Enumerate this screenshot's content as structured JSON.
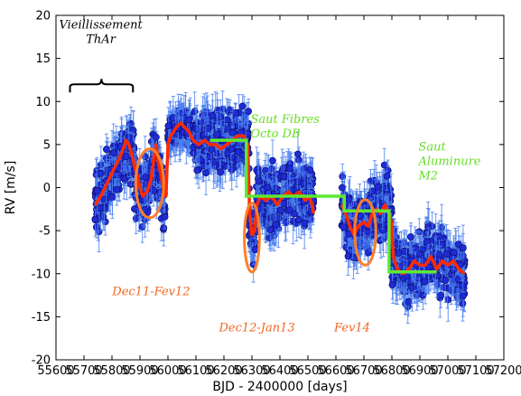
{
  "chart_data": {
    "type": "scatter",
    "title": "",
    "xlabel": "BJD - 2400000 [days]",
    "ylabel": "RV [m/s]",
    "xlim": [
      55600,
      57200
    ],
    "ylim": [
      -20,
      20
    ],
    "xticks": [
      55600,
      55700,
      55800,
      55900,
      56000,
      56100,
      56200,
      56300,
      56400,
      56500,
      56600,
      56700,
      56800,
      56900,
      57000,
      57100,
      57200
    ],
    "yticks": [
      -20,
      -15,
      -10,
      -5,
      0,
      5,
      10,
      15,
      20
    ],
    "grid": false,
    "colors": {
      "points": "#1f2bd6",
      "errorbars": "#4a7ff0",
      "smooth": "#ff2a00",
      "offsets": "#5ee832",
      "circles": "#ff7f2a",
      "annotation_orange": "#f26522",
      "annotation_green": "#66dd22"
    },
    "series": [
      {
        "style": "points-with-errorbars",
        "segments": [
          {
            "x_start": 55740,
            "x_end": 55880,
            "trend": [
              [
                55740,
                -2
              ],
              [
                55760,
                -1
              ],
              [
                55790,
                0.5
              ],
              [
                55810,
                2
              ],
              [
                55840,
                4
              ],
              [
                55860,
                5
              ],
              [
                55880,
                3
              ]
            ],
            "scatter": 2.6
          },
          {
            "x_start": 55880,
            "x_end": 55990,
            "trend": [
              [
                55880,
                1
              ],
              [
                55910,
                -1
              ],
              [
                55930,
                0
              ],
              [
                55950,
                4
              ],
              [
                55970,
                1
              ],
              [
                55990,
                -2
              ]
            ],
            "scatter": 2.6
          },
          {
            "x_start": 56000,
            "x_end": 56080,
            "trend": [
              [
                56000,
                6
              ],
              [
                56040,
                7
              ],
              [
                56080,
                7
              ]
            ],
            "scatter": 1.2
          },
          {
            "x_start": 56090,
            "x_end": 56290,
            "trend": [
              [
                56090,
                5
              ],
              [
                56150,
                5.5
              ],
              [
                56200,
                5
              ],
              [
                56250,
                6
              ],
              [
                56290,
                5
              ]
            ],
            "scatter": 2.4
          },
          {
            "x_start": 56290,
            "x_end": 56315,
            "trend": [
              [
                56290,
                -3
              ],
              [
                56300,
                -6
              ],
              [
                56315,
                -4
              ]
            ],
            "scatter": 2.2
          },
          {
            "x_start": 56315,
            "x_end": 56520,
            "trend": [
              [
                56315,
                -1
              ],
              [
                56380,
                -2
              ],
              [
                56440,
                0
              ],
              [
                56500,
                -1
              ],
              [
                56520,
                -1
              ]
            ],
            "scatter": 2.8
          },
          {
            "x_start": 56620,
            "x_end": 56800,
            "trend": [
              [
                56620,
                -2
              ],
              [
                56650,
                -5
              ],
              [
                56700,
                -4
              ],
              [
                56740,
                -3
              ],
              [
                56780,
                -2
              ],
              [
                56800,
                -3
              ]
            ],
            "scatter": 2.6
          },
          {
            "x_start": 56800,
            "x_end": 57060,
            "trend": [
              [
                56800,
                -8
              ],
              [
                56850,
                -10
              ],
              [
                56900,
                -9
              ],
              [
                56950,
                -8
              ],
              [
                57000,
                -9
              ],
              [
                57060,
                -10
              ]
            ],
            "scatter": 2.6
          }
        ]
      },
      {
        "style": "smooth-line",
        "points": [
          [
            55740,
            -2
          ],
          [
            55750,
            -1.5
          ],
          [
            55760,
            -1
          ],
          [
            55775,
            0
          ],
          [
            55790,
            1
          ],
          [
            55805,
            2
          ],
          [
            55820,
            3
          ],
          [
            55835,
            4
          ],
          [
            55850,
            5.5
          ],
          [
            55860,
            5
          ],
          [
            55870,
            4
          ],
          [
            55880,
            2.5
          ],
          [
            55890,
            1.5
          ],
          [
            55900,
            0
          ],
          [
            55910,
            -1
          ],
          [
            55925,
            -0.5
          ],
          [
            55940,
            1
          ],
          [
            55950,
            3.5
          ],
          [
            55958,
            5
          ],
          [
            55965,
            3
          ],
          [
            55975,
            1.5
          ],
          [
            55985,
            -0.5
          ],
          [
            55993,
            -1
          ],
          [
            56000,
            5
          ],
          [
            56010,
            6
          ],
          [
            56020,
            6.5
          ],
          [
            56030,
            7
          ],
          [
            56045,
            7.5
          ],
          [
            56060,
            7
          ],
          [
            56075,
            6.5
          ],
          [
            56090,
            5.5
          ],
          [
            56110,
            5
          ],
          [
            56130,
            5.5
          ],
          [
            56150,
            5
          ],
          [
            56170,
            5
          ],
          [
            56190,
            4.5
          ],
          [
            56210,
            5
          ],
          [
            56230,
            5.5
          ],
          [
            56250,
            6
          ],
          [
            56270,
            6
          ],
          [
            56285,
            5
          ],
          [
            56292,
            -3
          ],
          [
            56300,
            -5.5
          ],
          [
            56310,
            -5
          ],
          [
            56318,
            -2
          ],
          [
            56330,
            -1
          ],
          [
            56350,
            -1.5
          ],
          [
            56370,
            -1
          ],
          [
            56390,
            -2
          ],
          [
            56410,
            -1
          ],
          [
            56430,
            -0.5
          ],
          [
            56450,
            -1
          ],
          [
            56470,
            -0.5
          ],
          [
            56490,
            -1.5
          ],
          [
            56505,
            -1
          ],
          [
            56515,
            -2
          ],
          [
            56520,
            -3
          ],
          [
            56620,
            -2
          ],
          [
            56635,
            -3
          ],
          [
            56650,
            -4.5
          ],
          [
            56665,
            -5.5
          ],
          [
            56680,
            -4.5
          ],
          [
            56700,
            -4
          ],
          [
            56715,
            -4.5
          ],
          [
            56730,
            -3
          ],
          [
            56745,
            -2.5
          ],
          [
            56760,
            -3
          ],
          [
            56775,
            -2
          ],
          [
            56790,
            -3
          ],
          [
            56798,
            -4
          ],
          [
            56805,
            -8
          ],
          [
            56820,
            -9.5
          ],
          [
            56840,
            -10
          ],
          [
            56860,
            -9.5
          ],
          [
            56880,
            -8.5
          ],
          [
            56900,
            -9
          ],
          [
            56920,
            -9
          ],
          [
            56940,
            -8
          ],
          [
            56960,
            -9.5
          ],
          [
            56980,
            -8.5
          ],
          [
            57000,
            -9
          ],
          [
            57020,
            -8.5
          ],
          [
            57040,
            -9.5
          ],
          [
            57060,
            -10
          ]
        ]
      },
      {
        "style": "step-line",
        "points": [
          [
            56150,
            5.5
          ],
          [
            56280,
            5.5
          ],
          [
            56280,
            -1
          ],
          [
            56500,
            -1
          ],
          [
            56500,
            -1
          ],
          [
            56630,
            -1
          ],
          [
            56630,
            -2.7
          ],
          [
            56790,
            -2.7
          ],
          [
            56790,
            -9.8
          ],
          [
            56960,
            -9.8
          ]
        ]
      }
    ],
    "circles": [
      {
        "x": 55935,
        "y": 0.5,
        "rx": 50,
        "ry": 4
      },
      {
        "x": 56300,
        "y": -5.8,
        "rx": 27,
        "ry": 4
      },
      {
        "x": 56705,
        "y": -5.2,
        "rx": 38,
        "ry": 3.8
      }
    ],
    "bracket": {
      "x_start": 55650,
      "x_end": 55875,
      "y": 12
    },
    "annotations": [
      {
        "lines": [
          "Vieillissement",
          "ThAr"
        ],
        "x": 55760,
        "y": 18.5,
        "color": "#000000"
      },
      {
        "lines": [
          "Saut Fibres",
          "Octo DB"
        ],
        "x": 56295,
        "y": 7.5,
        "color": "#66dd22",
        "align": "start"
      },
      {
        "lines": [
          "Saut",
          "Aluminure",
          "M2"
        ],
        "x": 56895,
        "y": 4.3,
        "color": "#66dd22",
        "align": "start"
      },
      {
        "lines": [
          "Dec11-Fev12"
        ],
        "x": 55940,
        "y": -12.5,
        "color": "#f26522"
      },
      {
        "lines": [
          "Dec12-Jan13"
        ],
        "x": 56318,
        "y": -16.7,
        "color": "#f26522"
      },
      {
        "lines": [
          "Fev14"
        ],
        "x": 56658,
        "y": -16.7,
        "color": "#f26522"
      }
    ]
  }
}
